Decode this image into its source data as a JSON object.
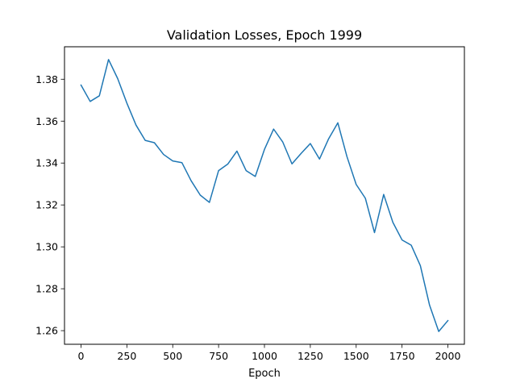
{
  "chart_data": {
    "type": "line",
    "title": "Validation Losses, Epoch 1999",
    "xlabel": "Epoch",
    "ylabel": "",
    "xlim": [
      -90,
      2090
    ],
    "ylim": [
      1.2535,
      1.3955
    ],
    "grid": false,
    "legend": "none",
    "xticks": [
      0,
      250,
      500,
      750,
      1000,
      1250,
      1500,
      1750,
      2000
    ],
    "yticks": [
      1.26,
      1.28,
      1.3,
      1.32,
      1.34,
      1.36,
      1.38
    ],
    "ytick_labels": [
      "1.26",
      "1.28",
      "1.30",
      "1.32",
      "1.34",
      "1.36",
      "1.38"
    ],
    "series": [
      {
        "color": "#1f77b4",
        "x": [
          0,
          50,
          100,
          150,
          200,
          250,
          300,
          350,
          400,
          450,
          500,
          550,
          600,
          650,
          700,
          750,
          800,
          850,
          900,
          950,
          1000,
          1050,
          1100,
          1150,
          1200,
          1250,
          1300,
          1350,
          1400,
          1450,
          1500,
          1550,
          1600,
          1650,
          1700,
          1750,
          1800,
          1850,
          1900,
          1950,
          2000
        ],
        "y": [
          1.3772,
          1.3694,
          1.3721,
          1.3894,
          1.3803,
          1.3686,
          1.3581,
          1.3508,
          1.3497,
          1.3441,
          1.341,
          1.3402,
          1.3316,
          1.3247,
          1.3212,
          1.3364,
          1.3395,
          1.3457,
          1.3364,
          1.3336,
          1.3465,
          1.3562,
          1.35,
          1.3396,
          1.3446,
          1.3493,
          1.3419,
          1.3516,
          1.3592,
          1.343,
          1.3298,
          1.3232,
          1.3068,
          1.325,
          1.3117,
          1.3033,
          1.3008,
          1.291,
          1.2722,
          1.2596,
          1.2648
        ]
      }
    ]
  }
}
